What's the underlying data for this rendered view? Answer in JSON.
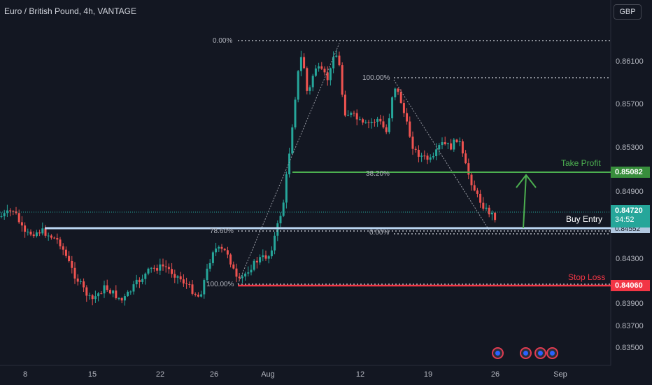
{
  "header": {
    "title": "Euro / British Pound, 4h, VANTAGE",
    "currency_button": "GBP"
  },
  "y_axis_labels": [
    "0.86100",
    "0.85700",
    "0.85300",
    "0.84900",
    "0.84300",
    "0.83900",
    "0.83700",
    "0.83500"
  ],
  "price_tags": {
    "take_profit": {
      "value": "0.85082",
      "color": "#388e3c"
    },
    "current": {
      "value": "0.84720",
      "countdown": "34:52",
      "color": "#26a69a"
    },
    "buy_entry": {
      "value": "0.84552"
    },
    "stop_loss": {
      "value": "0.84060",
      "color": "#f23645"
    }
  },
  "annotations": {
    "take_profit": "Take Profit",
    "buy_entry": "Buy Entry",
    "stop_loss": "Stop Loss"
  },
  "fib_left": {
    "top": "0.00%",
    "level_786": "78.60%",
    "bottom": "100.00%"
  },
  "fib_right": {
    "top": "100.00%",
    "level_382": "38.20%",
    "bottom": "0.00%"
  },
  "x_axis_labels": [
    "8",
    "15",
    "22",
    "26",
    "Aug",
    "12",
    "19",
    "26",
    "Sep"
  ],
  "colors": {
    "up": "#26a69a",
    "down": "#ef5350",
    "bg": "#131722"
  },
  "event_icons": [
    "calendar-event-icon",
    "calendar-event-icon",
    "calendar-event-icon",
    "calendar-event-icon"
  ]
}
